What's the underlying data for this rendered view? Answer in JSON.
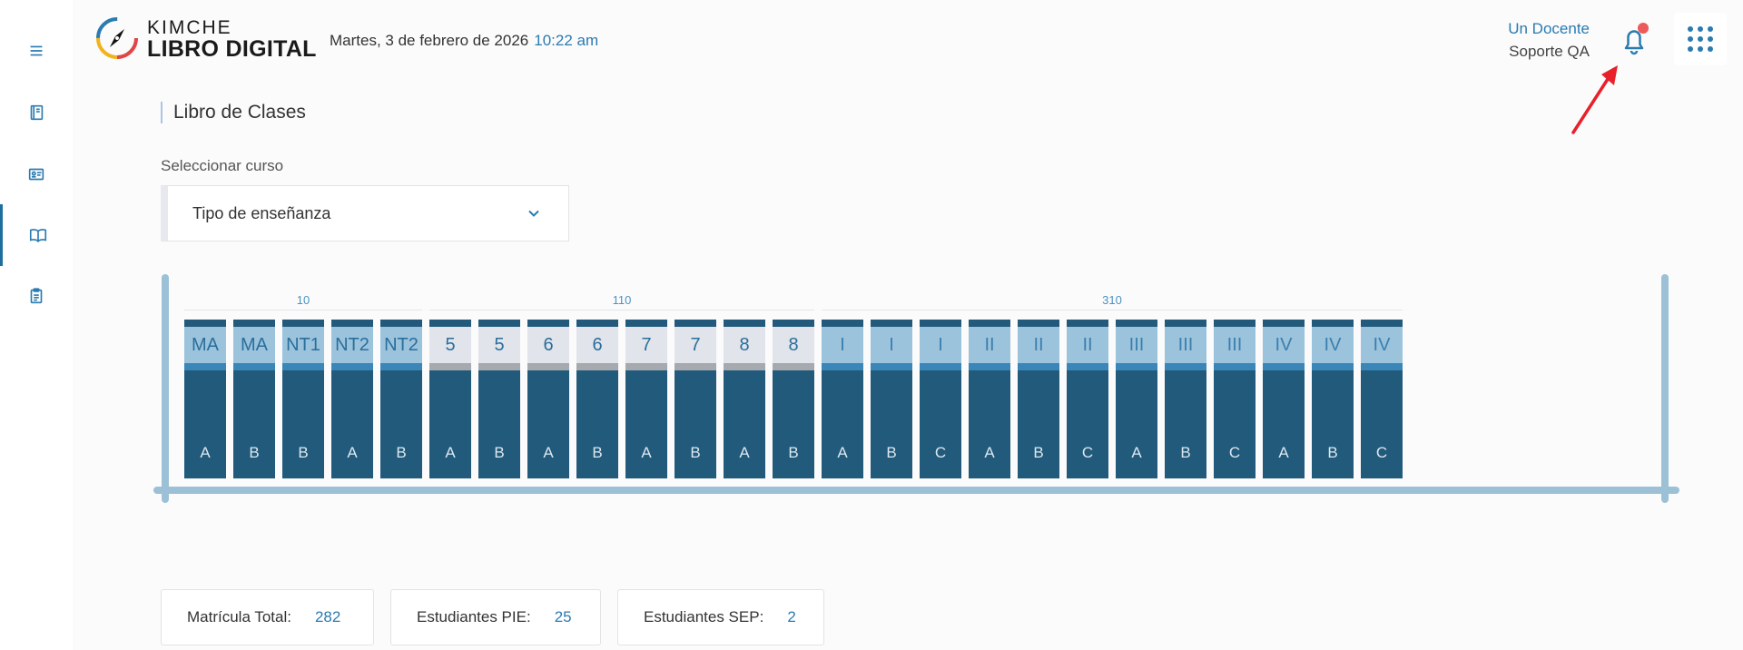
{
  "header": {
    "brand_top": "KIMCHE",
    "brand_bottom": "LIBRO DIGITAL",
    "date": "Martes, 3 de febrero de 2026",
    "time": "10:22 am",
    "user_name": "Un Docente",
    "user_role": "Soporte QA",
    "notification_color": "#ec5a5a"
  },
  "sidebar": {
    "items": [
      {
        "icon": "menu-icon"
      },
      {
        "icon": "notebook-icon"
      },
      {
        "icon": "id-card-icon"
      },
      {
        "icon": "open-book-icon",
        "active": true
      },
      {
        "icon": "clipboard-icon"
      }
    ]
  },
  "page": {
    "title": "Libro de Clases",
    "course_label": "Seleccionar curso",
    "select_value": "Tipo de enseñanza"
  },
  "shelf": {
    "groups": [
      {
        "label": "10",
        "books": [
          {
            "level": "MA",
            "section": "A"
          },
          {
            "level": "MA",
            "section": "B"
          },
          {
            "level": "NT1",
            "section": "B"
          },
          {
            "level": "NT2",
            "section": "A"
          },
          {
            "level": "NT2",
            "section": "B"
          }
        ]
      },
      {
        "label": "110",
        "books": [
          {
            "level": "5",
            "section": "A"
          },
          {
            "level": "5",
            "section": "B"
          },
          {
            "level": "6",
            "section": "A"
          },
          {
            "level": "6",
            "section": "B"
          },
          {
            "level": "7",
            "section": "A"
          },
          {
            "level": "7",
            "section": "B"
          },
          {
            "level": "8",
            "section": "A"
          },
          {
            "level": "8",
            "section": "B"
          }
        ]
      },
      {
        "label": "310",
        "books": [
          {
            "level": "I",
            "section": "A"
          },
          {
            "level": "I",
            "section": "B"
          },
          {
            "level": "I",
            "section": "C"
          },
          {
            "level": "II",
            "section": "A"
          },
          {
            "level": "II",
            "section": "B"
          },
          {
            "level": "II",
            "section": "C"
          },
          {
            "level": "III",
            "section": "A"
          },
          {
            "level": "III",
            "section": "B"
          },
          {
            "level": "III",
            "section": "C"
          },
          {
            "level": "IV",
            "section": "A"
          },
          {
            "level": "IV",
            "section": "B"
          },
          {
            "level": "IV",
            "section": "C"
          }
        ]
      }
    ]
  },
  "stats": [
    {
      "label": "Matrícula Total:",
      "value": "282"
    },
    {
      "label": "Estudiantes PIE:",
      "value": "25"
    },
    {
      "label": "Estudiantes SEP:",
      "value": "2"
    }
  ]
}
